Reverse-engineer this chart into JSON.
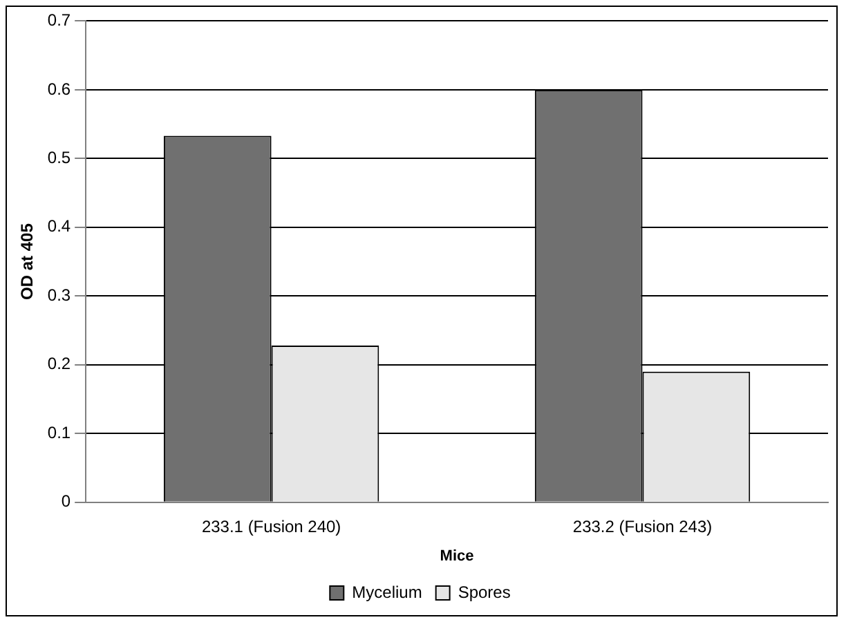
{
  "chart_data": {
    "type": "bar",
    "xlabel": "Mice",
    "ylabel": "OD at 405",
    "categories": [
      "233.1 (Fusion 240)",
      "233.2 (Fusion 243)"
    ],
    "series": [
      {
        "name": "Mycelium",
        "color": "#707070",
        "values": [
          0.533,
          0.6
        ]
      },
      {
        "name": "Spores",
        "color": "#e6e6e6",
        "values": [
          0.228,
          0.19
        ]
      }
    ],
    "ylim": [
      0,
      0.7
    ],
    "yticks": [
      0,
      0.1,
      0.2,
      0.3,
      0.4,
      0.5,
      0.6,
      0.7
    ],
    "grid": "y",
    "legend": "bottom"
  }
}
